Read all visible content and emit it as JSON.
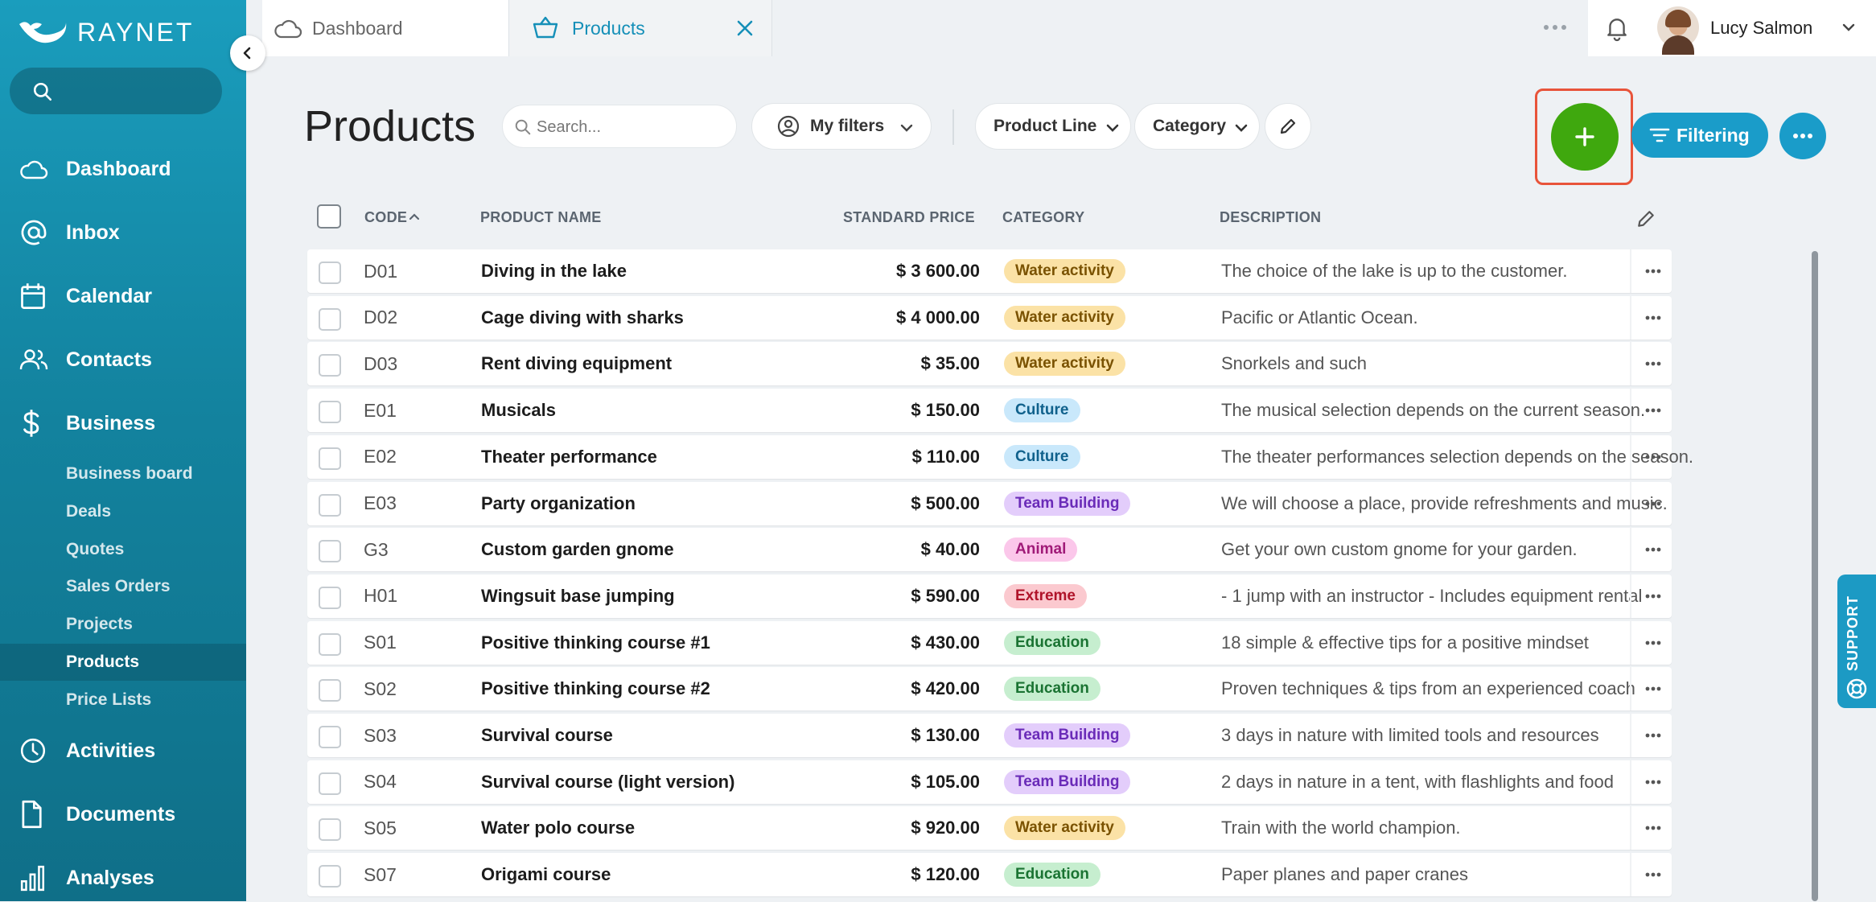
{
  "app": {
    "brand": "RAYNET"
  },
  "tabs": [
    {
      "label": "Dashboard",
      "icon": "cloud-icon"
    },
    {
      "label": "Products",
      "icon": "basket-icon",
      "active": true
    }
  ],
  "user": {
    "name": "Lucy Salmon"
  },
  "sidebar": {
    "nav": [
      {
        "label": "Dashboard",
        "icon": "cloud-icon"
      },
      {
        "label": "Inbox",
        "icon": "at-icon"
      },
      {
        "label": "Calendar",
        "icon": "calendar-icon"
      },
      {
        "label": "Contacts",
        "icon": "people-icon"
      },
      {
        "label": "Business",
        "icon": "dollar-icon"
      }
    ],
    "business_sub": [
      {
        "label": "Business board"
      },
      {
        "label": "Deals"
      },
      {
        "label": "Quotes"
      },
      {
        "label": "Sales Orders"
      },
      {
        "label": "Projects"
      },
      {
        "label": "Products",
        "active": true
      },
      {
        "label": "Price Lists"
      }
    ],
    "nav_bottom": [
      {
        "label": "Activities",
        "icon": "clock-icon"
      },
      {
        "label": "Documents",
        "icon": "document-icon"
      },
      {
        "label": "Analyses",
        "icon": "bar-chart-icon"
      }
    ]
  },
  "page": {
    "title": "Products",
    "search_placeholder": "Search...",
    "my_filters": "My filters",
    "filter_product_line": "Product Line",
    "filter_category": "Category",
    "filtering": "Filtering"
  },
  "table": {
    "columns": {
      "code": "CODE",
      "name": "PRODUCT NAME",
      "price": "STANDARD PRICE",
      "category": "CATEGORY",
      "description": "DESCRIPTION"
    },
    "sort": {
      "column": "code",
      "direction": "asc"
    },
    "rows": [
      {
        "code": "D01",
        "name": "Diving in the lake",
        "price": "$ 3 600.00",
        "category": "Water activity",
        "description": "The choice of the lake is up to the customer."
      },
      {
        "code": "D02",
        "name": "Cage diving with sharks",
        "price": "$ 4 000.00",
        "category": "Water activity",
        "description": "Pacific or Atlantic Ocean."
      },
      {
        "code": "D03",
        "name": "Rent diving equipment",
        "price": "$ 35.00",
        "category": "Water activity",
        "description": "Snorkels and such"
      },
      {
        "code": "E01",
        "name": "Musicals",
        "price": "$ 150.00",
        "category": "Culture",
        "description": "The musical selection depends on the current season."
      },
      {
        "code": "E02",
        "name": "Theater performance",
        "price": "$ 110.00",
        "category": "Culture",
        "description": "The theater performances selection depends on the season."
      },
      {
        "code": "E03",
        "name": "Party organization",
        "price": "$ 500.00",
        "category": "Team Building",
        "description": "We will choose a place, provide refreshments and music."
      },
      {
        "code": "G3",
        "name": "Custom garden gnome",
        "price": "$ 40.00",
        "category": "Animal",
        "description": "Get your own custom gnome for your garden."
      },
      {
        "code": "H01",
        "name": "Wingsuit base jumping",
        "price": "$ 590.00",
        "category": "Extreme",
        "description": "- 1 jump with an instructor - Includes equipment rental"
      },
      {
        "code": "S01",
        "name": "Positive thinking course #1",
        "price": "$ 430.00",
        "category": "Education",
        "description": "18 simple & effective tips for a positive mindset"
      },
      {
        "code": "S02",
        "name": "Positive thinking course #2",
        "price": "$ 420.00",
        "category": "Education",
        "description": "Proven techniques & tips from an experienced coach"
      },
      {
        "code": "S03",
        "name": "Survival course",
        "price": "$ 130.00",
        "category": "Team Building",
        "description": "3 days in nature with limited tools and resources"
      },
      {
        "code": "S04",
        "name": "Survival course (light version)",
        "price": "$ 105.00",
        "category": "Team Building",
        "description": "2 days in nature in a tent, with flashlights and food"
      },
      {
        "code": "S05",
        "name": "Water polo course",
        "price": "$ 920.00",
        "category": "Water activity",
        "description": "Train with the world champion."
      },
      {
        "code": "S07",
        "name": "Origami course",
        "price": "$ 120.00",
        "category": "Education",
        "description": "Paper planes and paper cranes"
      }
    ]
  },
  "category_colors": {
    "Water activity": {
      "bg": "#fbe2a6",
      "fg": "#7a5200"
    },
    "Culture": {
      "bg": "#c9e8fb",
      "fg": "#10618c"
    },
    "Team Building": {
      "bg": "#e3cdfb",
      "fg": "#6a2bb8"
    },
    "Animal": {
      "bg": "#fbc7ea",
      "fg": "#a01a78"
    },
    "Extreme": {
      "bg": "#fbc9cf",
      "fg": "#b0142a"
    },
    "Education": {
      "bg": "#c6eecf",
      "fg": "#1a7332"
    }
  },
  "colors": {
    "add_button": "#3fa80e",
    "primary": "#1a9cc9",
    "highlight": "#e8543a"
  },
  "support": {
    "label": "SUPPORT"
  }
}
